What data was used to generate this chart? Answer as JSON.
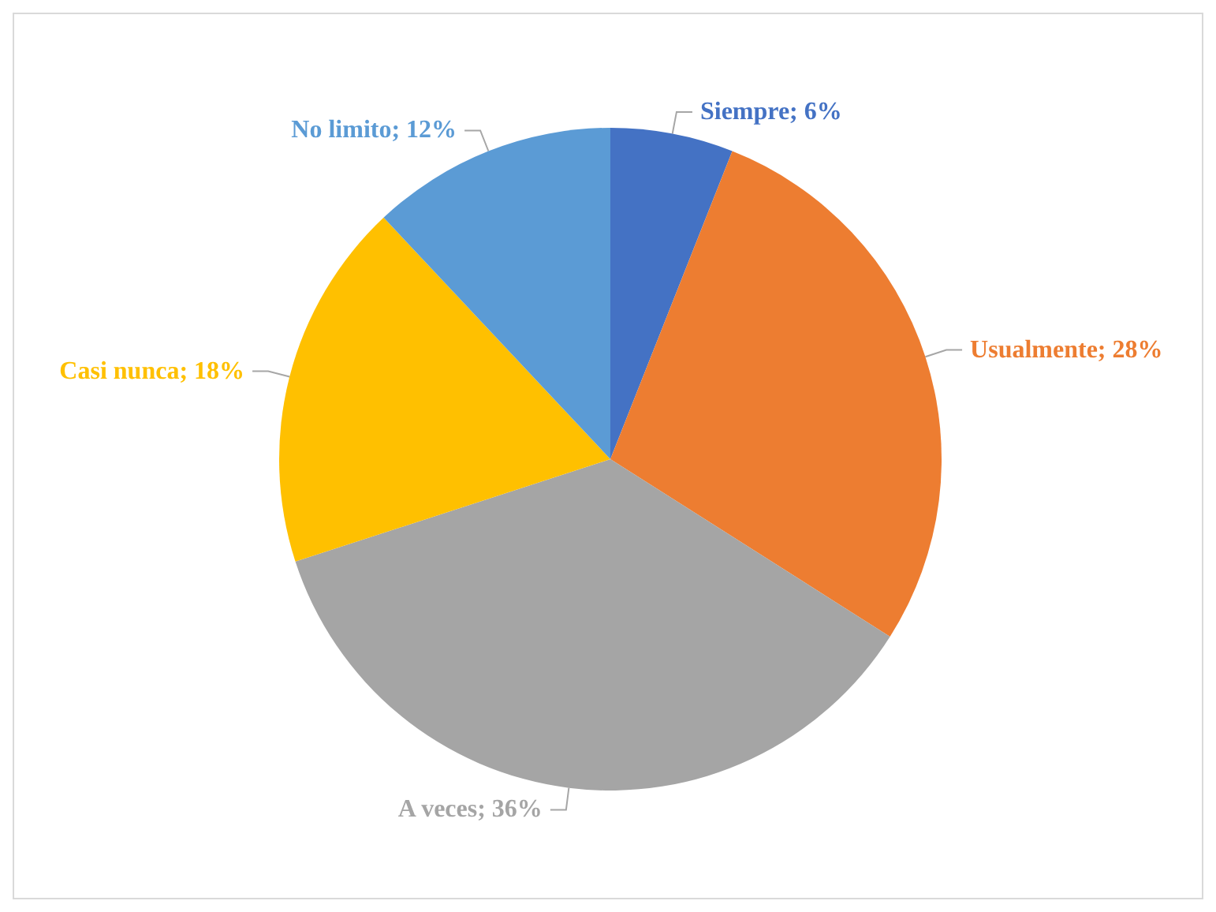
{
  "chart_data": {
    "type": "pie",
    "categories": [
      "Siempre",
      "Usualmente",
      "A veces",
      "Casi nunca",
      "No limito"
    ],
    "values": [
      6,
      28,
      36,
      18,
      12
    ],
    "colors": [
      "#4472c4",
      "#ed7d31",
      "#a5a5a5",
      "#ffc000",
      "#5b9bd5"
    ],
    "value_labels": [
      "6%",
      "28%",
      "36%",
      "18%",
      "12%"
    ],
    "legend": false
  }
}
